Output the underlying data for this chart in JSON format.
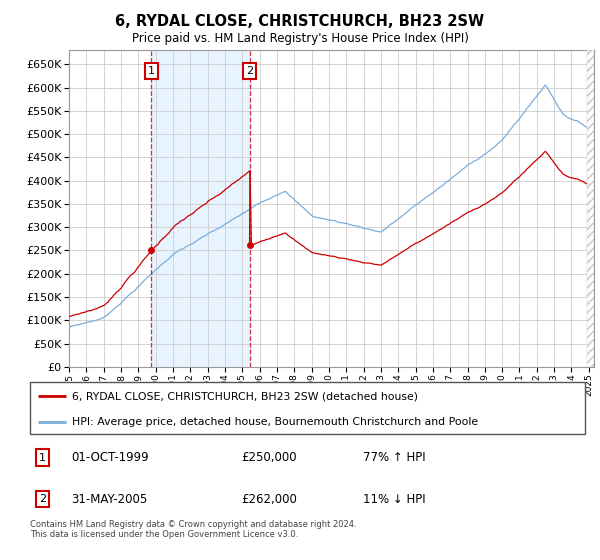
{
  "title": "6, RYDAL CLOSE, CHRISTCHURCH, BH23 2SW",
  "subtitle": "Price paid vs. HM Land Registry's House Price Index (HPI)",
  "legend_line1": "6, RYDAL CLOSE, CHRISTCHURCH, BH23 2SW (detached house)",
  "legend_line2": "HPI: Average price, detached house, Bournemouth Christchurch and Poole",
  "footnote": "Contains HM Land Registry data © Crown copyright and database right 2024.\nThis data is licensed under the Open Government Licence v3.0.",
  "sale1_date": "01-OCT-1999",
  "sale1_price": "£250,000",
  "sale1_hpi": "77% ↑ HPI",
  "sale2_date": "31-MAY-2005",
  "sale2_price": "£262,000",
  "sale2_hpi": "11% ↓ HPI",
  "sale1_year": 1999.75,
  "sale2_year": 2005.42,
  "sale1_price_val": 250000,
  "sale2_price_val": 262000,
  "xlim": [
    1995.0,
    2025.3
  ],
  "ylim": [
    0,
    680000
  ],
  "yticks": [
    0,
    50000,
    100000,
    150000,
    200000,
    250000,
    300000,
    350000,
    400000,
    450000,
    500000,
    550000,
    600000,
    650000
  ],
  "red_color": "#cc0000",
  "blue_color": "#7aadda",
  "grid_color": "#cccccc",
  "bg_color": "#ffffff",
  "plot_bg": "#ffffff",
  "shade_color": "#ddeeff"
}
